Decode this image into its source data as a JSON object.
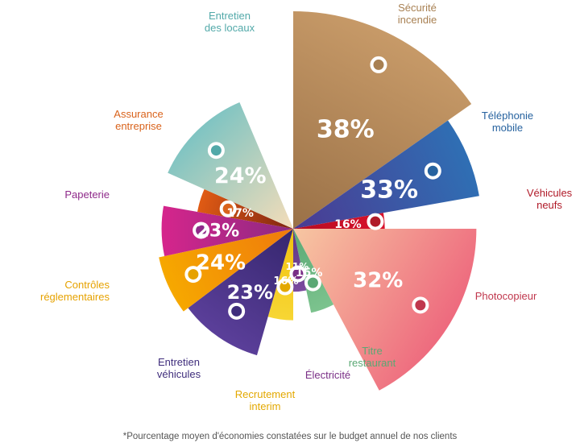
{
  "chart_data": {
    "type": "pie",
    "title": "",
    "slices": [
      {
        "name": "Sécurité incendie",
        "lines": [
          "Sécurité",
          "incendie"
        ],
        "value": 38,
        "label": "38%",
        "color": "#c79a68",
        "color2": "#9a7147",
        "text_color": "#a88052"
      },
      {
        "name": "Téléphonie mobile",
        "lines": [
          "Téléphonie",
          "mobile"
        ],
        "value": 33,
        "label": "33%",
        "color": "#2f6fb4",
        "color2": "#4b3a92",
        "text_color": "#26629f"
      },
      {
        "name": "Véhicules neufs",
        "lines": [
          "Véhicules",
          "neufs"
        ],
        "value": 16,
        "label": "16%",
        "color": "#d9122b",
        "color2": "#b50d22",
        "text_color": "#b01a28"
      },
      {
        "name": "Photocopieur",
        "lines": [
          "Photocopieur"
        ],
        "value": 32,
        "label": "32%",
        "color": "#ee6a7e",
        "color2": "#f7c7a2",
        "text_color": "#c0374d"
      },
      {
        "name": "Titre restaurant",
        "lines": [
          "Titre",
          "restaurant"
        ],
        "value": 15,
        "label": "15%",
        "color": "#7cc38e",
        "color2": "#5aa874",
        "text_color": "#5aa874"
      },
      {
        "name": "Électricité",
        "lines": [
          "Électricité"
        ],
        "value": 11,
        "label": "11%",
        "color": "#7b4a9e",
        "color2": "#5d3784",
        "text_color": "#7a2f86"
      },
      {
        "name": "Recrutement interim",
        "lines": [
          "Recrutement",
          "interim"
        ],
        "value": 16,
        "label": "16%",
        "color": "#f7d634",
        "color2": "#f2c20e",
        "text_color": "#e3a800"
      },
      {
        "name": "Entretien véhicules",
        "lines": [
          "Entretien",
          "véhicules"
        ],
        "value": 23,
        "label": "23%",
        "color": "#5b3f9a",
        "color2": "#35266e",
        "text_color": "#3f2d7c"
      },
      {
        "name": "Contrôles réglementaires",
        "lines": [
          "Contrôles",
          "réglementaires"
        ],
        "value": 24,
        "label": "24%",
        "color": "#f6a800",
        "color2": "#ef7a0c",
        "text_color": "#e6a200"
      },
      {
        "name": "Papeterie",
        "lines": [
          "Papeterie"
        ],
        "value": 23,
        "label": "23%",
        "color": "#d6258c",
        "color2": "#8b2a82",
        "text_color": "#8f2a8a"
      },
      {
        "name": "Assurance entreprise",
        "lines": [
          "Assurance",
          "entreprise"
        ],
        "value": 17,
        "label": "17%",
        "color": "#e05b14",
        "color2": "#7d2312",
        "text_color": "#d9631c"
      },
      {
        "name": "Entretien des locaux",
        "lines": [
          "Entretien",
          "des locaux"
        ],
        "value": 24,
        "label": "24%",
        "color": "#7fc4c2",
        "color2": "#f5ddb9",
        "text_color": "#52a9a9"
      }
    ],
    "note": "*Pourcentage moyen d'économies constatées sur le budget annuel de nos clients"
  }
}
